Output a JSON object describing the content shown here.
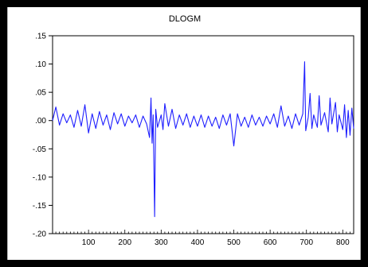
{
  "chart_data": {
    "type": "line",
    "title": "DLOGM",
    "xlabel": "",
    "ylabel": "",
    "xlim": [
      1,
      830
    ],
    "ylim": [
      -0.2,
      0.15
    ],
    "grid": false,
    "legend": "none",
    "series_color": "#1f1fff",
    "y_ticks": [
      ".15",
      ".10",
      ".05",
      ".00",
      "-.05",
      "-.10",
      "-.15",
      "-.20"
    ],
    "y_tick_values": [
      0.15,
      0.1,
      0.05,
      0.0,
      -0.05,
      -0.1,
      -0.15,
      -0.2
    ],
    "x_ticks": [
      "100",
      "200",
      "300",
      "400",
      "500",
      "600",
      "700",
      "800"
    ],
    "x_tick_values": [
      100,
      200,
      300,
      400,
      500,
      600,
      700,
      800
    ],
    "series": [
      {
        "x": [
          1,
          10,
          20,
          30,
          40,
          50,
          60,
          70,
          80,
          90,
          100,
          110,
          120,
          130,
          140,
          150,
          160,
          170,
          180,
          190,
          200,
          210,
          220,
          230,
          240,
          250,
          260,
          268,
          272,
          275,
          278,
          282,
          285,
          290,
          300,
          305,
          310,
          320,
          330,
          340,
          350,
          360,
          370,
          380,
          390,
          400,
          410,
          420,
          430,
          440,
          450,
          460,
          470,
          480,
          490,
          500,
          510,
          520,
          530,
          540,
          550,
          560,
          570,
          580,
          590,
          600,
          610,
          620,
          630,
          640,
          650,
          660,
          670,
          680,
          690,
          695,
          698,
          705,
          710,
          715,
          720,
          730,
          735,
          740,
          750,
          760,
          765,
          770,
          780,
          785,
          790,
          800,
          805,
          810,
          815,
          820,
          825,
          830
        ],
        "y": [
          0.0,
          0.024,
          -0.008,
          0.012,
          -0.004,
          0.01,
          -0.012,
          0.018,
          -0.01,
          0.028,
          -0.022,
          0.012,
          -0.014,
          0.016,
          -0.008,
          0.01,
          -0.016,
          0.014,
          -0.006,
          0.012,
          -0.01,
          0.008,
          -0.004,
          0.01,
          -0.012,
          0.008,
          -0.006,
          -0.03,
          0.04,
          -0.04,
          0.01,
          -0.17,
          0.02,
          -0.012,
          0.01,
          -0.016,
          0.03,
          -0.01,
          0.02,
          -0.014,
          0.01,
          -0.008,
          0.012,
          -0.012,
          0.008,
          -0.01,
          0.01,
          -0.012,
          0.008,
          -0.01,
          0.006,
          -0.014,
          0.01,
          -0.008,
          0.012,
          -0.045,
          0.012,
          -0.01,
          0.006,
          -0.012,
          0.01,
          -0.008,
          0.006,
          -0.01,
          0.008,
          -0.006,
          0.012,
          -0.012,
          0.026,
          -0.01,
          0.008,
          -0.014,
          0.012,
          -0.008,
          0.012,
          0.104,
          -0.018,
          0.006,
          0.048,
          -0.014,
          0.01,
          -0.012,
          0.044,
          -0.008,
          0.014,
          -0.02,
          0.04,
          -0.006,
          0.032,
          -0.02,
          0.01,
          -0.016,
          0.028,
          -0.03,
          0.018,
          -0.026,
          0.022,
          -0.014
        ]
      }
    ]
  }
}
